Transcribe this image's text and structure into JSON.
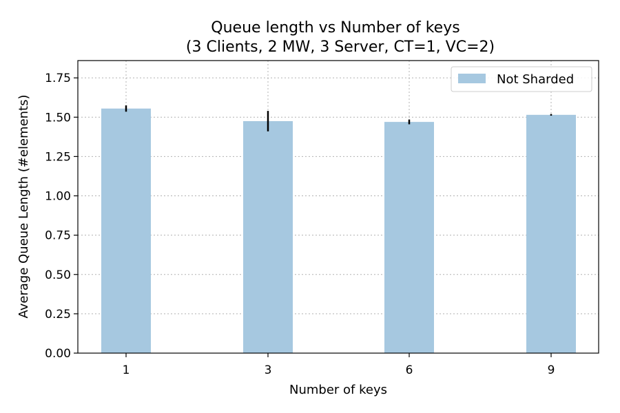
{
  "chart_data": {
    "type": "bar",
    "title": "Queue length vs Number of keys",
    "subtitle": "(3 Clients, 2 MW, 3 Server, CT=1, VC=2)",
    "xlabel": "Number of keys",
    "ylabel": "Average Queue Length (#elements)",
    "categories": [
      "1",
      "3",
      "6",
      "9"
    ],
    "y_ticks": [
      "0.00",
      "0.25",
      "0.50",
      "0.75",
      "1.00",
      "1.25",
      "1.50",
      "1.75"
    ],
    "ylim": [
      0,
      1.86
    ],
    "grid": true,
    "legend_position": "top-right",
    "series": [
      {
        "name": "Not Sharded",
        "values": [
          1.555,
          1.475,
          1.47,
          1.515
        ],
        "errors": [
          0.02,
          0.065,
          0.015,
          0.005
        ],
        "color": "#a6c8e0"
      }
    ]
  }
}
